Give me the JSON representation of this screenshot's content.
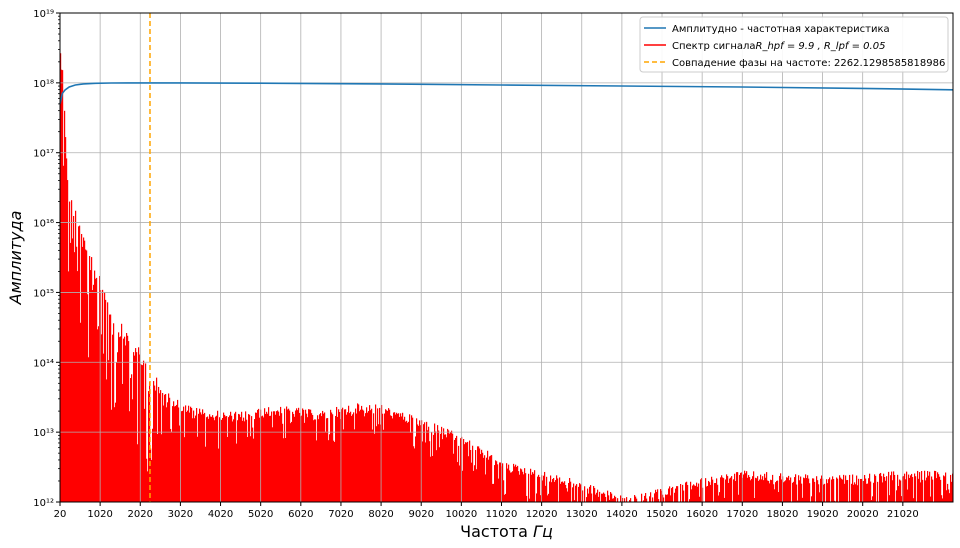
{
  "chart_data": {
    "type": "line",
    "title": "",
    "xlabel": "Частота Гц",
    "ylabel": "Амплитуда",
    "xscale": "linear",
    "yscale": "log",
    "xlim": [
      20,
      22270
    ],
    "ylim_exp": [
      12,
      19
    ],
    "grid": true,
    "legend_position": "top-right",
    "x_ticks": [
      20,
      1020,
      2020,
      3020,
      4020,
      5020,
      6020,
      7020,
      8020,
      9020,
      10020,
      11020,
      12020,
      13020,
      14020,
      15020,
      16020,
      17020,
      18020,
      19020,
      20020,
      21020
    ],
    "y_ticks": [
      {
        "exp": 12,
        "label": "10¹²"
      },
      {
        "exp": 13,
        "label": "10¹³"
      },
      {
        "exp": 14,
        "label": "10¹⁴"
      },
      {
        "exp": 15,
        "label": "10¹⁵"
      },
      {
        "exp": 16,
        "label": "10¹⁶"
      },
      {
        "exp": 17,
        "label": "10¹⁷"
      },
      {
        "exp": 18,
        "label": "10¹⁸"
      },
      {
        "exp": 19,
        "label": "10¹⁹"
      }
    ],
    "series": [
      {
        "name": "Амплитудно - частотная характеристика",
        "color": "#1f77b4",
        "style": "solid",
        "x": [
          20,
          80,
          150,
          250,
          400,
          600,
          900,
          1300,
          2000,
          3000,
          5000,
          8000,
          11000,
          14000,
          17000,
          20000,
          22270
        ],
        "log10_y": [
          17.7,
          17.85,
          17.9,
          17.94,
          17.97,
          17.985,
          17.993,
          17.998,
          18.0,
          18.0,
          17.995,
          17.985,
          17.97,
          17.955,
          17.94,
          17.92,
          17.9
        ]
      },
      {
        "name": "Спектр сигнала",
        "name_math": "R_hpf = 9.9 , R_lpf = 0.05",
        "color": "#ff0000",
        "style": "filled-spectrum",
        "envelope_x": [
          20,
          60,
          100,
          150,
          200,
          300,
          400,
          500,
          700,
          1000,
          1300,
          1600,
          2000,
          2300,
          2600,
          3000,
          3500,
          4000,
          4500,
          5000,
          5500,
          6000,
          6500,
          7000,
          7500,
          8000,
          8500,
          9000,
          9500,
          10000,
          10500,
          11000,
          12000,
          13000,
          13500,
          14000,
          14500,
          15000,
          16000,
          17000,
          18000,
          19000,
          20000,
          21000,
          22270
        ],
        "envelope_log10_y": [
          18.5,
          18.4,
          18.2,
          17.2,
          16.6,
          16.4,
          16.2,
          16.0,
          15.6,
          15.3,
          14.8,
          14.5,
          14.2,
          13.9,
          13.6,
          13.45,
          13.35,
          13.3,
          13.3,
          13.35,
          13.38,
          13.35,
          13.3,
          13.38,
          13.42,
          13.4,
          13.3,
          13.2,
          13.1,
          12.95,
          12.8,
          12.6,
          12.45,
          12.3,
          12.2,
          12.1,
          12.12,
          12.2,
          12.35,
          12.45,
          12.42,
          12.38,
          12.4,
          12.45,
          12.45
        ]
      },
      {
        "name": "Совпадение фазы на частоте: 2262.1298585818986",
        "color": "#ffa500",
        "style": "dashed-vertical",
        "x": 2262.1298585818986
      }
    ],
    "legend": [
      {
        "label": "Амплитудно - частотная характеристика",
        "color": "#1f77b4",
        "dash": false
      },
      {
        "label": "Спектр сигнала",
        "math": "R_hpf = 9.9 , R_lpf = 0.05",
        "color": "#ff0000",
        "dash": false
      },
      {
        "label": "Совпадение фазы на частоте: 2262.1298585818986",
        "color": "#ffa500",
        "dash": true
      }
    ]
  }
}
